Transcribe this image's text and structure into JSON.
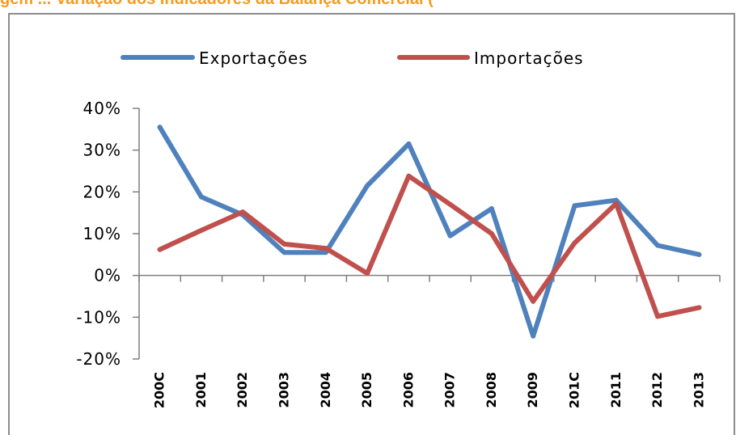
{
  "page": {
    "title": "gem ... Variação dos Indicadores da Balança Comercial ("
  },
  "chart_data": {
    "type": "line",
    "title": "",
    "xlabel": "",
    "ylabel": "",
    "categories": [
      "2000",
      "2001",
      "2002",
      "2003",
      "2004",
      "2005",
      "2006",
      "2007",
      "2008",
      "2009",
      "2010",
      "2011",
      "2012",
      "2013"
    ],
    "category_labels": [
      "200C",
      "2001",
      "2002",
      "2003",
      "2004",
      "2005",
      "2006",
      "2007",
      "2008",
      "2009",
      "201C",
      "2011",
      "2012",
      "2013"
    ],
    "y_ticks": [
      "40%",
      "30%",
      "20%",
      "10%",
      "0%",
      "-10%",
      "-20%"
    ],
    "y_tick_values": [
      40,
      30,
      20,
      10,
      0,
      -10,
      -20
    ],
    "ylim": [
      -20,
      40
    ],
    "legend_position": "top",
    "grid": false,
    "series": [
      {
        "name": "Exportações",
        "color": "#4f81bd",
        "values": [
          35.5,
          18.8,
          14.5,
          5.5,
          5.5,
          21.5,
          31.5,
          9.5,
          16,
          -14.5,
          16.7,
          18,
          7.2,
          5
        ]
      },
      {
        "name": "Importações",
        "color": "#c0504d",
        "values": [
          6.2,
          10.8,
          15.2,
          7.5,
          6.5,
          0.5,
          23.8,
          17,
          10,
          -6.2,
          7.8,
          17.2,
          -9.8,
          -7.7
        ]
      }
    ]
  }
}
